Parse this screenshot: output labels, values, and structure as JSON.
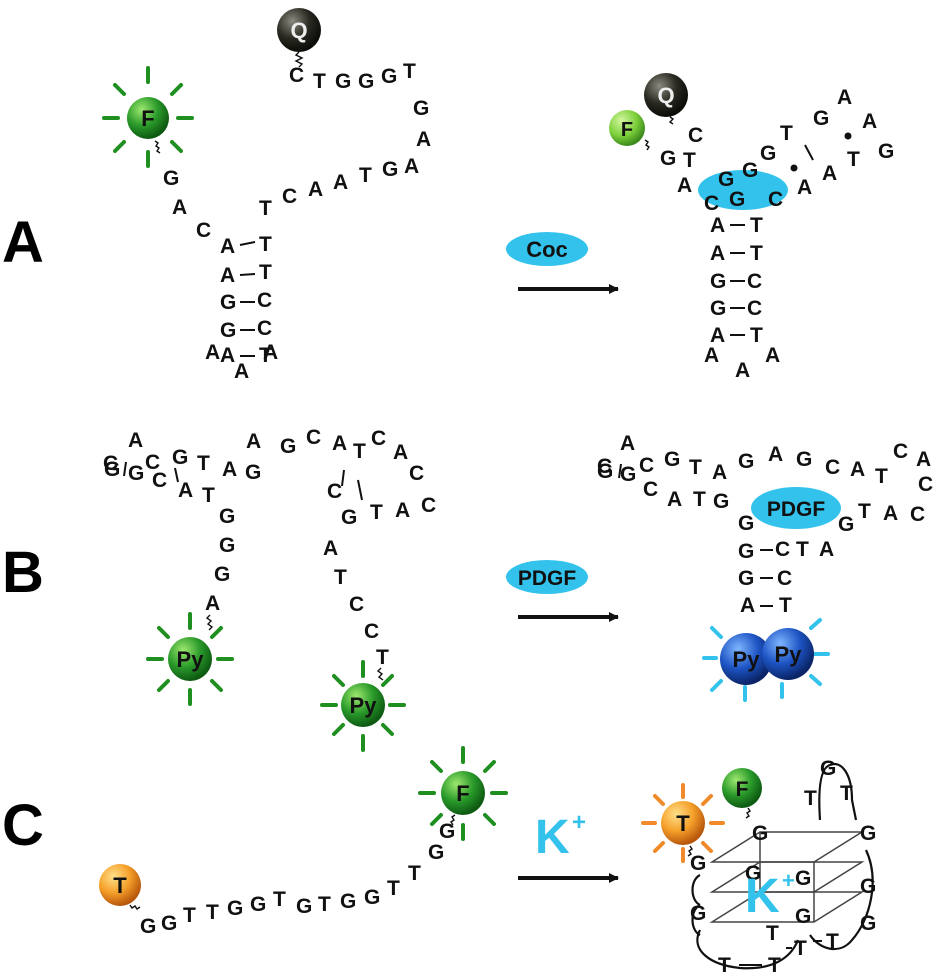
{
  "panels": [
    {
      "label": "A",
      "reagent": "Coc",
      "fluorophore": "F",
      "quencher": "Q"
    },
    {
      "label": "B",
      "reagent": "PDGF",
      "fluorophore": "Py",
      "bound_protein": "PDGF"
    },
    {
      "label": "C",
      "reagent": "K",
      "reagent_sup": "+",
      "fluorophore_1": "T",
      "fluorophore_2": "F",
      "center_ion": "K",
      "center_ion_sup": "+"
    }
  ],
  "colors": {
    "fluorophore_green": "#1f8f1f",
    "fluorophore_light_green": "#7ccf3a",
    "quencher": "#2a2a22",
    "target_cyan": "#33c2ec",
    "pyrene_blue": "#123f9a",
    "tamra_orange": "#f08a2a"
  },
  "sequences": {
    "a_left_top": [
      "C",
      "T",
      "G",
      "G",
      "G",
      "T",
      "G",
      "A",
      "A",
      "G",
      "T",
      "A",
      "A",
      "C",
      "T",
      "C",
      "A",
      "G"
    ],
    "a_stem_left": [
      "A",
      "A",
      "G",
      "G",
      "A"
    ],
    "a_stem_right": [
      "T",
      "T",
      "C",
      "C",
      "T"
    ],
    "a_tail": [
      "A",
      "A",
      "A"
    ],
    "c_left_strand": [
      "G",
      "G",
      "T",
      "T",
      "G",
      "G",
      "T",
      "G",
      "T",
      "G",
      "G",
      "T",
      "T",
      "G",
      "G"
    ]
  }
}
